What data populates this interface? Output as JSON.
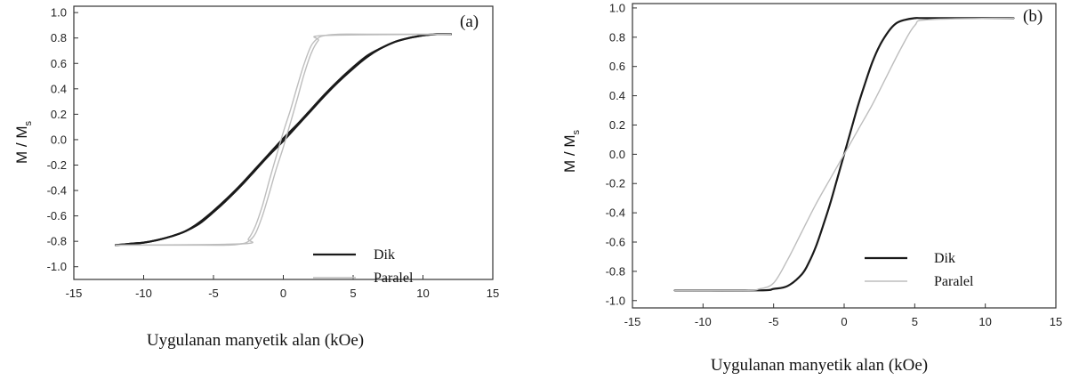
{
  "chart_data": [
    {
      "type": "line",
      "panel_label": "(a)",
      "xlabel": "Uygulanan manyetik alan (kOe)",
      "ylabel_main": "M / M",
      "ylabel_sub": "s",
      "xlim": [
        -15,
        15
      ],
      "ylim": [
        -1.1,
        1.05
      ],
      "xticks": [
        -15,
        -10,
        -5,
        0,
        5,
        10,
        15
      ],
      "xtick_labels": [
        "-15",
        "-10",
        "-5",
        "0",
        "5",
        "10",
        "15"
      ],
      "yticks": [
        1.0,
        0.8,
        0.6,
        0.4,
        0.2,
        0.0,
        -0.2,
        -0.4,
        -0.6,
        -0.8,
        -1.0
      ],
      "ytick_labels": [
        "1.0",
        "0.8",
        "0.6",
        "0.4",
        "0.2",
        "0.0",
        "-0.2",
        "-0.4",
        "-0.6",
        "-0.8",
        "-1.0"
      ],
      "grid": false,
      "legend_position": "bottom-right",
      "series": [
        {
          "name": "Dik",
          "color": "#1a1a1a",
          "style": "thick",
          "branches": [
            {
              "x": [
                -12,
                -11,
                -10,
                -9,
                -8,
                -7,
                -6,
                -5,
                -4,
                -3,
                -2,
                -1,
                0,
                1,
                2,
                3,
                4,
                5,
                6,
                7,
                8,
                9,
                10,
                11,
                12
              ],
              "y": [
                -0.83,
                -0.82,
                -0.81,
                -0.79,
                -0.76,
                -0.72,
                -0.66,
                -0.57,
                -0.47,
                -0.36,
                -0.24,
                -0.12,
                -0.01,
                0.11,
                0.23,
                0.35,
                0.46,
                0.56,
                0.65,
                0.72,
                0.77,
                0.8,
                0.82,
                0.83,
                0.83
              ]
            },
            {
              "x": [
                -12,
                -11,
                -10,
                -9,
                -8,
                -7,
                -6,
                -5,
                -4,
                -3,
                -2,
                -1,
                0,
                1,
                2,
                3,
                4,
                5,
                6,
                7,
                8,
                9,
                10,
                11,
                12
              ],
              "y": [
                -0.83,
                -0.82,
                -0.81,
                -0.79,
                -0.76,
                -0.72,
                -0.65,
                -0.56,
                -0.46,
                -0.35,
                -0.23,
                -0.11,
                0.01,
                0.12,
                0.24,
                0.36,
                0.47,
                0.57,
                0.66,
                0.72,
                0.77,
                0.8,
                0.82,
                0.83,
                0.83
              ]
            }
          ]
        },
        {
          "name": "Paralel",
          "color": "#bdbdbd",
          "style": "thin",
          "branches": [
            {
              "x": [
                -12,
                -6,
                -4,
                -3,
                -2.5,
                -2,
                -1.5,
                -1,
                -0.5,
                0,
                0.5,
                1,
                1.5,
                2,
                2.5,
                3,
                12
              ],
              "y": [
                -0.83,
                -0.83,
                -0.83,
                -0.82,
                -0.8,
                -0.74,
                -0.6,
                -0.42,
                -0.23,
                -0.06,
                0.13,
                0.32,
                0.52,
                0.68,
                0.78,
                0.82,
                0.83
              ]
            },
            {
              "x": [
                -12,
                -3,
                -2.5,
                -2,
                -1.5,
                -1,
                -0.5,
                0,
                0.5,
                1,
                1.5,
                2,
                2.5,
                3,
                4,
                6,
                12
              ],
              "y": [
                -0.83,
                -0.82,
                -0.78,
                -0.68,
                -0.52,
                -0.32,
                -0.13,
                0.06,
                0.23,
                0.42,
                0.6,
                0.74,
                0.8,
                0.82,
                0.83,
                0.83,
                0.83
              ]
            }
          ]
        }
      ]
    },
    {
      "type": "line",
      "panel_label": "(b)",
      "xlabel": "Uygulanan manyetik alan (kOe)",
      "ylabel_main": "M / M",
      "ylabel_sub": "s",
      "xlim": [
        -15,
        15
      ],
      "ylim": [
        -1.05,
        1.03
      ],
      "xticks": [
        -15,
        -10,
        -5,
        0,
        5,
        10,
        15
      ],
      "xtick_labels": [
        "-15",
        "-10",
        "-5",
        "0",
        "5",
        "10",
        "15"
      ],
      "yticks": [
        1.0,
        0.8,
        0.6,
        0.4,
        0.2,
        0.0,
        -0.2,
        -0.4,
        -0.6,
        -0.8,
        -1.0
      ],
      "ytick_labels": [
        "1.0",
        "0.8",
        "0.6",
        "0.4",
        "0.2",
        "0.0",
        "-0.2",
        "-0.4",
        "-0.6",
        "-0.8",
        "-1.0"
      ],
      "grid": false,
      "legend_position": "bottom-right",
      "series": [
        {
          "name": "Dik",
          "color": "#1a1a1a",
          "style": "thick",
          "branches": [
            {
              "x": [
                -12,
                -6,
                -5,
                -4,
                -3,
                -2.5,
                -2,
                -1.5,
                -1,
                -0.5,
                0,
                0.5,
                1,
                1.5,
                2,
                2.5,
                3,
                3.5,
                4,
                5,
                6,
                12
              ],
              "y": [
                -0.93,
                -0.93,
                -0.92,
                -0.9,
                -0.82,
                -0.74,
                -0.63,
                -0.49,
                -0.34,
                -0.17,
                0.0,
                0.17,
                0.34,
                0.49,
                0.63,
                0.74,
                0.82,
                0.88,
                0.91,
                0.93,
                0.93,
                0.93
              ]
            }
          ]
        },
        {
          "name": "Paralel",
          "color": "#bdbdbd",
          "style": "thin",
          "branches": [
            {
              "x": [
                -12,
                -7,
                -6,
                -5,
                -4,
                -3,
                -2,
                -1,
                0,
                1,
                2,
                3,
                4,
                5,
                6,
                12
              ],
              "y": [
                -0.93,
                -0.93,
                -0.92,
                -0.88,
                -0.72,
                -0.53,
                -0.34,
                -0.17,
                0.0,
                0.17,
                0.34,
                0.53,
                0.72,
                0.88,
                0.92,
                0.93
              ]
            }
          ]
        }
      ]
    }
  ]
}
